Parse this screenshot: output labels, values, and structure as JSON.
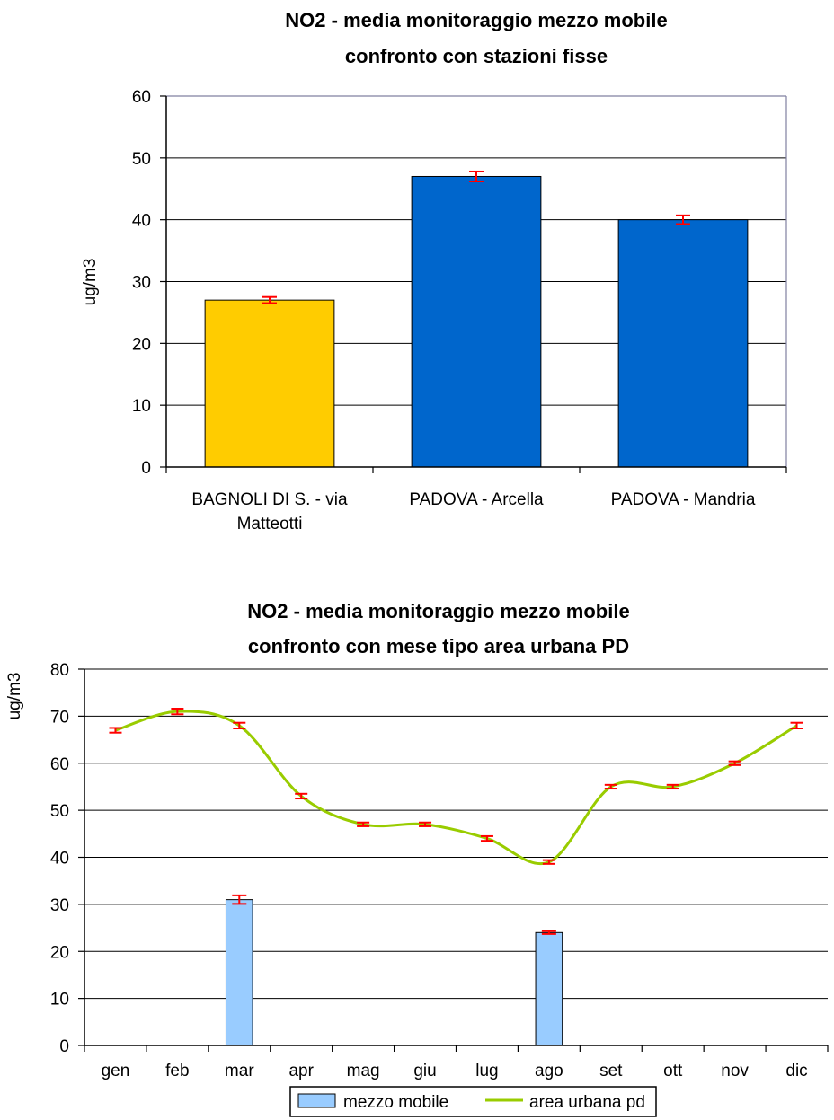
{
  "chart_data": [
    {
      "type": "bar",
      "title": [
        "NO2 - media monitoraggio mezzo mobile",
        "confronto con stazioni fisse"
      ],
      "ylabel": "ug/m3",
      "ylim": [
        0,
        60
      ],
      "yticks": [
        0,
        10,
        20,
        30,
        40,
        50,
        60
      ],
      "categories": [
        [
          "BAGNOLI DI S. - via",
          "Matteotti"
        ],
        [
          "PADOVA - Arcella"
        ],
        [
          "PADOVA - Mandria"
        ]
      ],
      "values": [
        27,
        47,
        40
      ],
      "errors": [
        0.5,
        0.8,
        0.7
      ],
      "bar_colors": [
        "#FFCC00",
        "#0066CC",
        "#0066CC"
      ],
      "error_color": "#FF0000",
      "grid": true
    },
    {
      "type": "bar+line",
      "title": [
        "NO2 - media monitoraggio mezzo mobile",
        "confronto con mese tipo area urbana PD"
      ],
      "ylabel": "ug/m3",
      "ylim": [
        0,
        80
      ],
      "yticks": [
        0,
        10,
        20,
        30,
        40,
        50,
        60,
        70,
        80
      ],
      "categories": [
        "gen",
        "feb",
        "mar",
        "apr",
        "mag",
        "giu",
        "lug",
        "ago",
        "set",
        "ott",
        "nov",
        "dic"
      ],
      "series": [
        {
          "name": "mezzo mobile",
          "type": "bar",
          "color": "#99CCFF",
          "values": [
            null,
            null,
            31,
            null,
            null,
            null,
            null,
            24,
            null,
            null,
            null,
            null
          ],
          "errors": [
            null,
            null,
            0.9,
            null,
            null,
            null,
            null,
            0.3,
            null,
            null,
            null,
            null
          ]
        },
        {
          "name": "area urbana pd",
          "type": "line",
          "color": "#99CC00",
          "values": [
            67,
            71,
            68,
            53,
            47,
            47,
            44,
            39,
            55,
            55,
            60,
            68
          ],
          "errors": [
            0.5,
            0.6,
            0.6,
            0.5,
            0.4,
            0.4,
            0.5,
            0.4,
            0.4,
            0.4,
            0.4,
            0.6
          ]
        }
      ],
      "error_color": "#FF0000",
      "legend": "bottom",
      "grid": true
    }
  ]
}
